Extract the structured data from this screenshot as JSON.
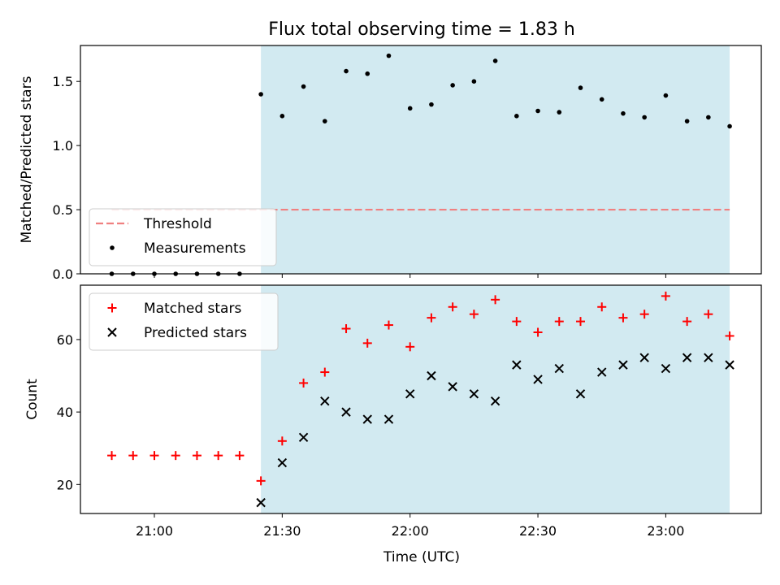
{
  "chart_data": {
    "title": "Flux total observing time = 1.83 h",
    "xlabel": "Time (UTC)",
    "x_ticks": [
      "21:00",
      "21:30",
      "22:00",
      "22:30",
      "23:00"
    ],
    "x_tick_minutes": [
      0,
      30,
      60,
      90,
      120
    ],
    "shaded_interval_minutes": [
      25,
      135
    ],
    "shade_color": "#add8e6",
    "panels": [
      {
        "type": "scatter",
        "ylabel": "Matched/Predicted stars",
        "ylim": [
          0,
          1.78
        ],
        "y_ticks": [
          "0.0",
          "0.5",
          "1.0",
          "1.5"
        ],
        "y_tick_values": [
          0,
          0.5,
          1.0,
          1.5
        ],
        "threshold": {
          "name": "Threshold",
          "value": 0.5,
          "x_range": [
            -10,
            135
          ],
          "color": "#f08080"
        },
        "series": [
          {
            "name": "Measurements",
            "color": "#000000",
            "marker": "dot",
            "x": [
              -10,
              -5,
              0,
              5,
              10,
              15,
              20,
              25,
              30,
              35,
              40,
              45,
              50,
              55,
              60,
              65,
              70,
              75,
              80,
              85,
              90,
              95,
              100,
              105,
              110,
              115,
              120,
              125,
              130,
              135
            ],
            "y": [
              0,
              0,
              0,
              0,
              0,
              0,
              0,
              1.4,
              1.23,
              1.46,
              1.19,
              1.58,
              1.56,
              1.7,
              1.29,
              1.32,
              1.47,
              1.5,
              1.66,
              1.23,
              1.27,
              1.26,
              1.45,
              1.36,
              1.25,
              1.22,
              1.39,
              1.19,
              1.22,
              1.15
            ]
          }
        ],
        "legend": {
          "position": "lower-left",
          "entries": [
            "Threshold",
            "Measurements"
          ]
        }
      },
      {
        "type": "scatter",
        "ylabel": "Count",
        "ylim": [
          12,
          75
        ],
        "y_ticks": [
          "20",
          "40",
          "60"
        ],
        "y_tick_values": [
          20,
          40,
          60
        ],
        "series": [
          {
            "name": "Matched stars",
            "color": "#ff0000",
            "marker": "plus",
            "x": [
              -10,
              -5,
              0,
              5,
              10,
              15,
              20,
              25,
              30,
              35,
              40,
              45,
              50,
              55,
              60,
              65,
              70,
              75,
              80,
              85,
              90,
              95,
              100,
              105,
              110,
              115,
              120,
              125,
              130,
              135
            ],
            "y": [
              28,
              28,
              28,
              28,
              28,
              28,
              28,
              21,
              32,
              48,
              51,
              63,
              59,
              64,
              58,
              66,
              69,
              67,
              71,
              65,
              62,
              65,
              65,
              69,
              66,
              67,
              72,
              65,
              67,
              61
            ]
          },
          {
            "name": "Predicted stars",
            "color": "#000000",
            "marker": "x",
            "x": [
              25,
              30,
              35,
              40,
              45,
              50,
              55,
              60,
              65,
              70,
              75,
              80,
              85,
              90,
              95,
              100,
              105,
              110,
              115,
              120,
              125,
              130,
              135
            ],
            "y": [
              15,
              26,
              33,
              43,
              40,
              38,
              38,
              45,
              50,
              47,
              45,
              43,
              53,
              49,
              52,
              45,
              51,
              53,
              55,
              52,
              55,
              55,
              53
            ]
          }
        ],
        "legend": {
          "position": "upper-left",
          "entries": [
            "Matched stars",
            "Predicted stars"
          ]
        }
      }
    ]
  }
}
